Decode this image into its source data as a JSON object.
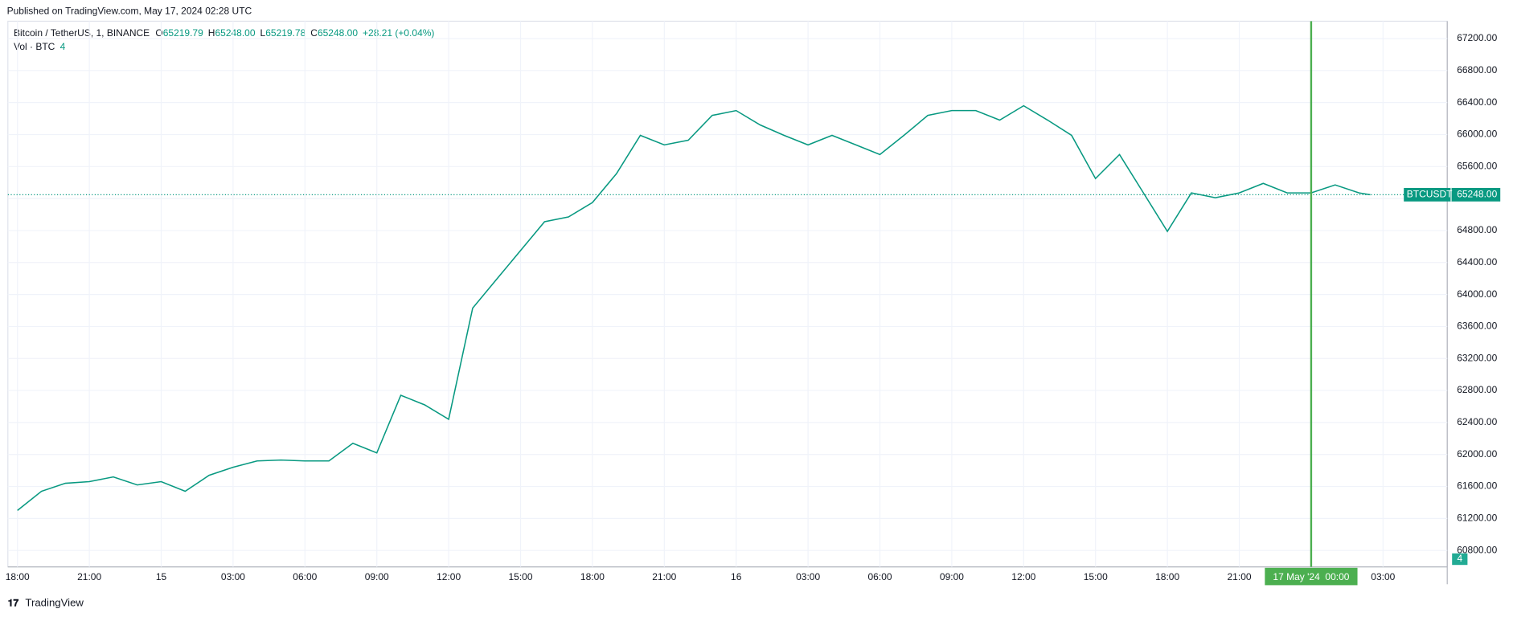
{
  "header": {
    "published": "Published on TradingView.com, May 17, 2024 02:28 UTC",
    "symbol": "Bitcoin / TetherUS, 1, BINANCE",
    "ohlc": [
      {
        "key": "O",
        "value": "65219.79"
      },
      {
        "key": "H",
        "value": "65248.00"
      },
      {
        "key": "L",
        "value": "65219.78"
      },
      {
        "key": "C",
        "value": "65248.00"
      }
    ],
    "change": "+28.21 (+0.04%)",
    "volume_name": "Vol · BTC",
    "volume_value": "4"
  },
  "footer": {
    "brand": "TradingView"
  },
  "chart_data": {
    "type": "line",
    "color": "#089981",
    "series": [
      {
        "name": "BTCUSDT",
        "color": "#089981",
        "x": [
          0,
          1,
          2,
          3,
          4,
          5,
          6,
          7,
          8,
          9,
          10,
          11,
          12,
          13,
          14,
          15,
          16,
          17,
          18,
          19,
          20,
          21,
          22,
          23,
          24,
          25,
          26,
          27,
          28,
          29,
          30,
          31,
          32,
          33,
          34,
          35,
          36,
          37,
          38,
          39,
          40,
          41,
          42,
          43,
          44,
          45,
          46,
          47,
          48,
          49,
          50,
          51,
          52,
          53,
          54,
          55,
          56,
          56.47
        ],
        "values": [
          61300,
          61540,
          61640,
          61660,
          61720,
          61620,
          61660,
          61540,
          61740,
          61840,
          61920,
          61930,
          61920,
          61920,
          62140,
          62020,
          62740,
          62620,
          62440,
          63830,
          64190,
          64550,
          64910,
          64970,
          65150,
          65510,
          65990,
          65870,
          65930,
          66240,
          66300,
          66120,
          65990,
          65870,
          65990,
          65870,
          65750,
          65990,
          66240,
          66300,
          66300,
          66180,
          66360,
          66180,
          65990,
          65450,
          65750,
          65270,
          64790,
          65270,
          65210,
          65270,
          65390,
          65270,
          65270,
          65370,
          65270,
          65248
        ]
      }
    ],
    "last_price": {
      "name": "BTCUSDT",
      "label": "65248.00"
    },
    "volume_label": "4",
    "crosshair": {
      "x": 54,
      "label": "17 May '24  00:00"
    },
    "xlim": [
      -0.4,
      59.68
    ],
    "ylim": [
      60595,
      67417
    ],
    "xticks": [
      {
        "value": 0,
        "label": "18:00"
      },
      {
        "value": 3,
        "label": "21:00"
      },
      {
        "value": 6,
        "label": "15"
      },
      {
        "value": 9,
        "label": "03:00"
      },
      {
        "value": 12,
        "label": "06:00"
      },
      {
        "value": 15,
        "label": "09:00"
      },
      {
        "value": 18,
        "label": "12:00"
      },
      {
        "value": 21,
        "label": "15:00"
      },
      {
        "value": 24,
        "label": "18:00"
      },
      {
        "value": 27,
        "label": "21:00"
      },
      {
        "value": 30,
        "label": "16"
      },
      {
        "value": 33,
        "label": "03:00"
      },
      {
        "value": 36,
        "label": "06:00"
      },
      {
        "value": 39,
        "label": "09:00"
      },
      {
        "value": 42,
        "label": "12:00"
      },
      {
        "value": 45,
        "label": "15:00"
      },
      {
        "value": 48,
        "label": "18:00"
      },
      {
        "value": 51,
        "label": "21:00"
      },
      {
        "value": 57,
        "label": "03:00"
      }
    ],
    "yticks": [
      {
        "value": 60800,
        "label": "60800.00"
      },
      {
        "value": 61200,
        "label": "61200.00"
      },
      {
        "value": 61600,
        "label": "61600.00"
      },
      {
        "value": 62000,
        "label": "62000.00"
      },
      {
        "value": 62400,
        "label": "62400.00"
      },
      {
        "value": 62800,
        "label": "62800.00"
      },
      {
        "value": 63200,
        "label": "63200.00"
      },
      {
        "value": 63600,
        "label": "63600.00"
      },
      {
        "value": 64000,
        "label": "64000.00"
      },
      {
        "value": 64400,
        "label": "64400.00"
      },
      {
        "value": 64800,
        "label": "64800.00"
      },
      {
        "value": 65200,
        "label": "65200.00"
      },
      {
        "value": 65600,
        "label": "65600.00"
      },
      {
        "value": 66000,
        "label": "66000.00"
      },
      {
        "value": 66400,
        "label": "66400.00"
      },
      {
        "value": 66800,
        "label": "66800.00"
      },
      {
        "value": 67200,
        "label": "67200.00"
      }
    ],
    "grid": true
  }
}
